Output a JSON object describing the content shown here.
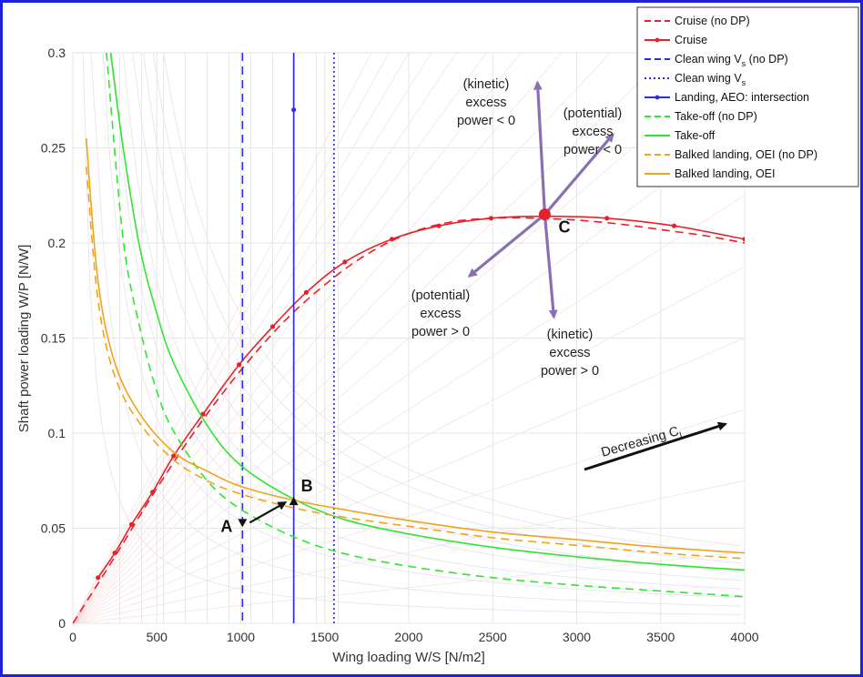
{
  "chart_data": {
    "type": "line",
    "xlabel": "Wing loading W/S [N/m2]",
    "ylabel": "Shaft power loading W/P [N/W]",
    "xlim": [
      0,
      4000
    ],
    "ylim": [
      0,
      0.3
    ],
    "xticks": [
      "0",
      "500",
      "1000",
      "1500",
      "2000",
      "2500",
      "3000",
      "3500",
      "4000"
    ],
    "yticks": [
      "0",
      "0.05",
      "0.1",
      "0.15",
      "0.2",
      "0.25",
      "0.3"
    ],
    "grid": true,
    "legend_position": "top-right",
    "series": [
      {
        "name": "Cruise (no DP)",
        "color": "#e8202a",
        "dash": "dashed",
        "marker": "none",
        "x": [
          0,
          250,
          500,
          750,
          1000,
          1250,
          1500,
          1750,
          2000,
          2250,
          2500,
          2750,
          3000,
          3250,
          3500,
          3750,
          4000
        ],
        "y": [
          0,
          0.035,
          0.071,
          0.104,
          0.133,
          0.158,
          0.178,
          0.194,
          0.205,
          0.211,
          0.213,
          0.213,
          0.212,
          0.21,
          0.207,
          0.204,
          0.2
        ]
      },
      {
        "name": "Cruise",
        "color": "#e8202a",
        "dash": "solid",
        "marker": "dot",
        "x": [
          150,
          250,
          350,
          475,
          600,
          775,
          990,
          1190,
          1390,
          1620,
          1900,
          2180,
          2490,
          2810,
          3180,
          3580,
          4000
        ],
        "y": [
          0.024,
          0.037,
          0.052,
          0.069,
          0.088,
          0.11,
          0.136,
          0.156,
          0.174,
          0.19,
          0.202,
          0.209,
          0.213,
          0.214,
          0.213,
          0.209,
          0.202
        ]
      },
      {
        "name": "Clean wing V_s (no DP)",
        "color": "#2b2bea",
        "dash": "dashed",
        "vertical_x": 1010
      },
      {
        "name": "Clean wing V_s",
        "color": "#2b2bea",
        "dash": "dotted",
        "vertical_x": 1555
      },
      {
        "name": "Landing, AEO: intersection",
        "color": "#2b2bea",
        "dash": "solid",
        "vertical_x": 1315,
        "marker_point": [
          1315,
          0.27
        ]
      },
      {
        "name": "Take-off (no DP)",
        "color": "#2ee62e",
        "dash": "dashed",
        "x": [
          200,
          300,
          400,
          500,
          600,
          800,
          1000,
          1300,
          1600,
          2000,
          2500,
          3000,
          3500,
          4000
        ],
        "y": [
          0.3,
          0.202,
          0.155,
          0.122,
          0.101,
          0.075,
          0.06,
          0.046,
          0.037,
          0.03,
          0.024,
          0.02,
          0.017,
          0.014
        ]
      },
      {
        "name": "Take-off",
        "color": "#2ee62e",
        "dash": "solid",
        "x": [
          225,
          300,
          400,
          500,
          600,
          800,
          1000,
          1300,
          1600,
          2000,
          2500,
          3000,
          3500,
          4000
        ],
        "y": [
          0.3,
          0.25,
          0.197,
          0.163,
          0.137,
          0.104,
          0.083,
          0.066,
          0.055,
          0.047,
          0.04,
          0.035,
          0.031,
          0.028
        ]
      },
      {
        "name": "Balked landing, OEI (no DP)",
        "color": "#f2a21b",
        "dash": "dashed",
        "x": [
          80,
          150,
          250,
          400,
          600,
          800,
          1000,
          1300,
          1600,
          2000,
          2500,
          3000,
          3500,
          4000
        ],
        "y": [
          0.24,
          0.17,
          0.13,
          0.105,
          0.086,
          0.075,
          0.068,
          0.061,
          0.056,
          0.051,
          0.045,
          0.041,
          0.037,
          0.034
        ]
      },
      {
        "name": "Balked landing, OEI",
        "color": "#f2a21b",
        "dash": "solid",
        "x": [
          80,
          150,
          250,
          400,
          600,
          800,
          1000,
          1300,
          1600,
          2000,
          2500,
          3000,
          3500,
          4000
        ],
        "y": [
          0.255,
          0.18,
          0.137,
          0.11,
          0.09,
          0.08,
          0.072,
          0.065,
          0.06,
          0.054,
          0.048,
          0.044,
          0.04,
          0.037
        ]
      }
    ],
    "points": [
      {
        "label": "A",
        "x": 1010,
        "y": 0.052
      },
      {
        "label": "B",
        "x": 1315,
        "y": 0.065
      },
      {
        "label": "C",
        "x": 2810,
        "y": 0.215
      }
    ],
    "annotations": {
      "kinetic_neg": [
        "(kinetic)",
        "excess",
        "power < 0"
      ],
      "potential_neg": [
        "(potential)",
        "excess",
        "power < 0"
      ],
      "potential_pos": [
        "(potential)",
        "excess",
        "power > 0"
      ],
      "kinetic_pos": [
        "(kinetic)",
        "excess",
        "power > 0"
      ],
      "decreasing": "Decreasing C",
      "decreasing_sub": "L"
    },
    "colors": {
      "cruise": "#e8202a",
      "stall": "#2b2bea",
      "takeoff": "#2ee62e",
      "balked": "#f2a21b",
      "arrows": "#8a70b0"
    }
  }
}
